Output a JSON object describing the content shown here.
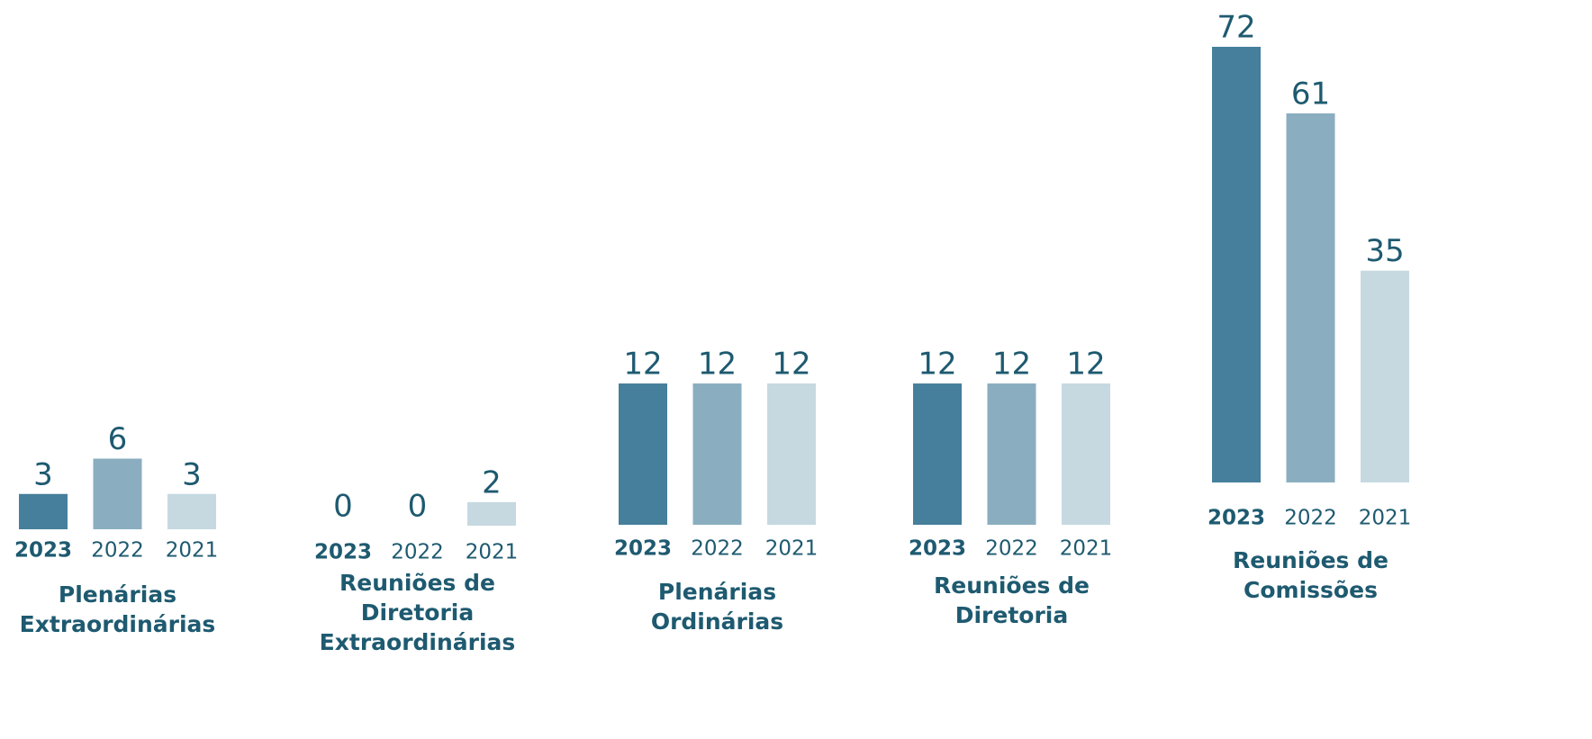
{
  "chart_data": [
    {
      "type": "bar",
      "title": [
        "Plenárias",
        "Extraordinárias"
      ],
      "categories": [
        "2023",
        "2022",
        "2021"
      ],
      "values": [
        3,
        6,
        3
      ],
      "colors": [
        "#457f9b",
        "#8aaec0",
        "#c6d9e1"
      ],
      "ylim": [
        0,
        37
      ]
    },
    {
      "type": "bar",
      "title": [
        "Reuniões de",
        "Diretoria",
        "Extraordinárias"
      ],
      "categories": [
        "2023",
        "2022",
        "2021"
      ],
      "values": [
        0,
        0,
        2
      ],
      "colors": [
        "#457f9b",
        "#8aaec0",
        "#c6d9e1"
      ],
      "ylim": [
        0,
        37
      ]
    },
    {
      "type": "bar",
      "title": [
        "Plenárias",
        "Ordinárias"
      ],
      "categories": [
        "2023",
        "2022",
        "2021"
      ],
      "values": [
        12,
        12,
        12
      ],
      "colors": [
        "#457f9b",
        "#8aaec0",
        "#c6d9e1"
      ],
      "ylim": [
        0,
        37
      ]
    },
    {
      "type": "bar",
      "title": [
        "Reuniões de",
        "Diretoria"
      ],
      "categories": [
        "2023",
        "2022",
        "2021"
      ],
      "values": [
        12,
        12,
        12
      ],
      "colors": [
        "#457f9b",
        "#8aaec0",
        "#c6d9e1"
      ],
      "ylim": [
        0,
        37
      ]
    },
    {
      "type": "bar",
      "title": [
        "Reuniões de",
        "Comissões"
      ],
      "categories": [
        "2023",
        "2022",
        "2021"
      ],
      "values": [
        72,
        61,
        35
      ],
      "colors": [
        "#457f9b",
        "#8aaec0",
        "#c6d9e1"
      ],
      "ylim": [
        0,
        72
      ]
    }
  ]
}
